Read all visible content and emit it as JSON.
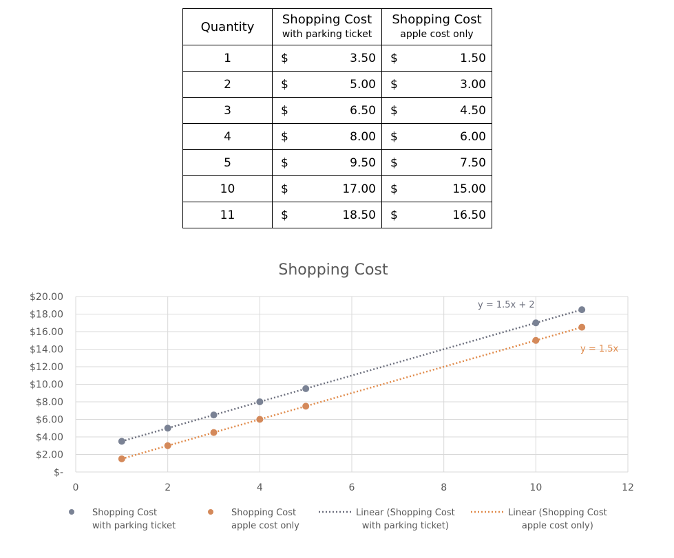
{
  "table": {
    "headers": {
      "quantity": "Quantity",
      "col_a_main": "Shopping Cost",
      "col_a_sub": "with parking ticket",
      "col_b_main": "Shopping Cost",
      "col_b_sub": "apple cost only"
    },
    "currency_symbol": "$",
    "rows": [
      {
        "quantity": "1",
        "with_parking": "3.50",
        "apple_only": "1.50"
      },
      {
        "quantity": "2",
        "with_parking": "5.00",
        "apple_only": "3.00"
      },
      {
        "quantity": "3",
        "with_parking": "6.50",
        "apple_only": "4.50"
      },
      {
        "quantity": "4",
        "with_parking": "8.00",
        "apple_only": "6.00"
      },
      {
        "quantity": "5",
        "with_parking": "9.50",
        "apple_only": "7.50"
      },
      {
        "quantity": "10",
        "with_parking": "17.00",
        "apple_only": "15.00"
      },
      {
        "quantity": "11",
        "with_parking": "18.50",
        "apple_only": "16.50"
      }
    ]
  },
  "chart_data": {
    "type": "scatter",
    "title": "Shopping Cost",
    "xlim": [
      0,
      12
    ],
    "ylim": [
      0,
      20
    ],
    "x_ticks": [
      0,
      2,
      4,
      6,
      8,
      10,
      12
    ],
    "y_tick_labels": [
      "$-",
      "$2.00",
      "$4.00",
      "$6.00",
      "$8.00",
      "$10.00",
      "$12.00",
      "$14.00",
      "$16.00",
      "$18.00",
      "$20.00"
    ],
    "grid": true,
    "legend_position": "bottom",
    "series": [
      {
        "name": "Shopping Cost with parking ticket",
        "legend_lines": [
          "Shopping Cost",
          "with parking ticket"
        ],
        "color": "#7a8294",
        "x": [
          1,
          2,
          3,
          4,
          5,
          10,
          11
        ],
        "y": [
          3.5,
          5,
          6.5,
          8,
          9.5,
          17,
          18.5
        ],
        "trendline": {
          "slope": 1.5,
          "intercept": 2,
          "equation": "y = 1.5x + 2",
          "legend_lines": [
            "Linear (Shopping Cost",
            "with parking ticket)"
          ],
          "color": "#6c6f7d"
        }
      },
      {
        "name": "Shopping Cost apple cost only",
        "legend_lines": [
          "Shopping Cost",
          "apple cost only"
        ],
        "color": "#d4895a",
        "x": [
          1,
          2,
          3,
          4,
          5,
          10,
          11
        ],
        "y": [
          1.5,
          3,
          4.5,
          6,
          7.5,
          15,
          16.5
        ],
        "trendline": {
          "slope": 1.5,
          "intercept": 0,
          "equation": "y = 1.5x",
          "legend_lines": [
            "Linear (Shopping Cost",
            "apple cost only)"
          ],
          "color": "#e08a4a"
        }
      }
    ]
  }
}
